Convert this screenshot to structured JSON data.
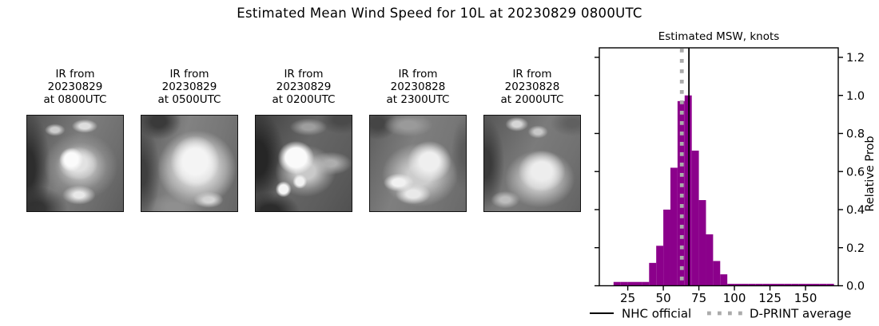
{
  "title": "Estimated Mean Wind Speed for 10L at 20230829 0800UTC",
  "satellite_panels": [
    {
      "label": "IR from\n20230829\nat 0800UTC"
    },
    {
      "label": "IR from\n20230829\nat 0500UTC"
    },
    {
      "label": "IR from\n20230829\nat 0200UTC"
    },
    {
      "label": "IR from\n20230828\nat 2300UTC"
    },
    {
      "label": "IR from\n20230828\nat 2000UTC"
    }
  ],
  "chart_data": {
    "type": "bar",
    "title": "Estimated MSW, knots",
    "xlabel": "",
    "ylabel": "Relative Prob",
    "bar_color": "#8B008B",
    "bin_start": 15,
    "bin_width": 5,
    "values": [
      0.02,
      0.02,
      0.02,
      0.02,
      0.02,
      0.12,
      0.21,
      0.4,
      0.62,
      0.97,
      1.0,
      0.71,
      0.45,
      0.27,
      0.13,
      0.06,
      0.01,
      0.01,
      0.01,
      0.01,
      0.01,
      0.01,
      0.01,
      0.01,
      0.01,
      0.01,
      0.01,
      0.01,
      0.01,
      0.01,
      0.01
    ],
    "xlim": [
      5,
      173
    ],
    "ylim": [
      0,
      1.25
    ],
    "xticks": [
      25,
      50,
      75,
      100,
      125,
      150
    ],
    "ytick_labels": [
      "0.0",
      "0.2",
      "0.4",
      "0.6",
      "0.8",
      "1.0",
      "1.2"
    ],
    "ytick_values": [
      0,
      0.2,
      0.4,
      0.6,
      0.8,
      1.0,
      1.2
    ],
    "grid": false,
    "legend_position": "below-axis",
    "reference_lines": [
      {
        "label": "NHC official",
        "x": 68,
        "style": "solid",
        "color": "#000000"
      },
      {
        "label": "D-PRINT average",
        "x": 63,
        "style": "dotted",
        "color": "#ABABAB"
      }
    ]
  }
}
